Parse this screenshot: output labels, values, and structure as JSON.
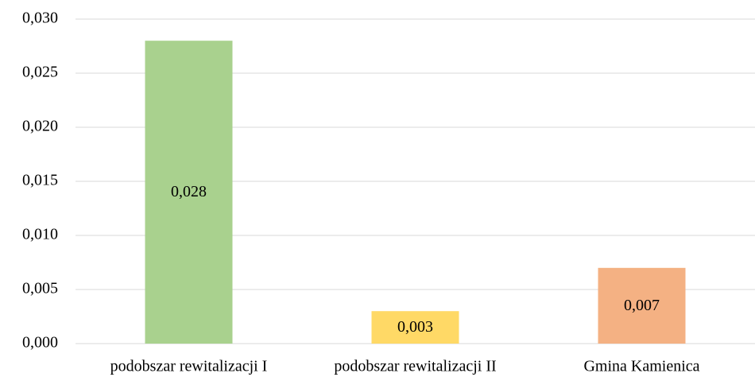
{
  "chart_data": {
    "type": "bar",
    "categories": [
      "podobszar rewitalizacji I",
      "podobszar rewitalizacji II",
      "Gmina Kamienica"
    ],
    "values": [
      0.028,
      0.003,
      0.007
    ],
    "value_labels": [
      "0,028",
      "0,003",
      "0,007"
    ],
    "colors": [
      "#a9d18e",
      "#ffd966",
      "#f4b183"
    ],
    "ylim": [
      0,
      0.03
    ],
    "yticks": [
      {
        "value": 0,
        "label": "0,000"
      },
      {
        "value": 0.005,
        "label": "0,005"
      },
      {
        "value": 0.01,
        "label": "0,010"
      },
      {
        "value": 0.015,
        "label": "0,015"
      },
      {
        "value": 0.02,
        "label": "0,020"
      },
      {
        "value": 0.025,
        "label": "0,025"
      },
      {
        "value": 0.03,
        "label": "0,030"
      }
    ],
    "grid": true
  }
}
